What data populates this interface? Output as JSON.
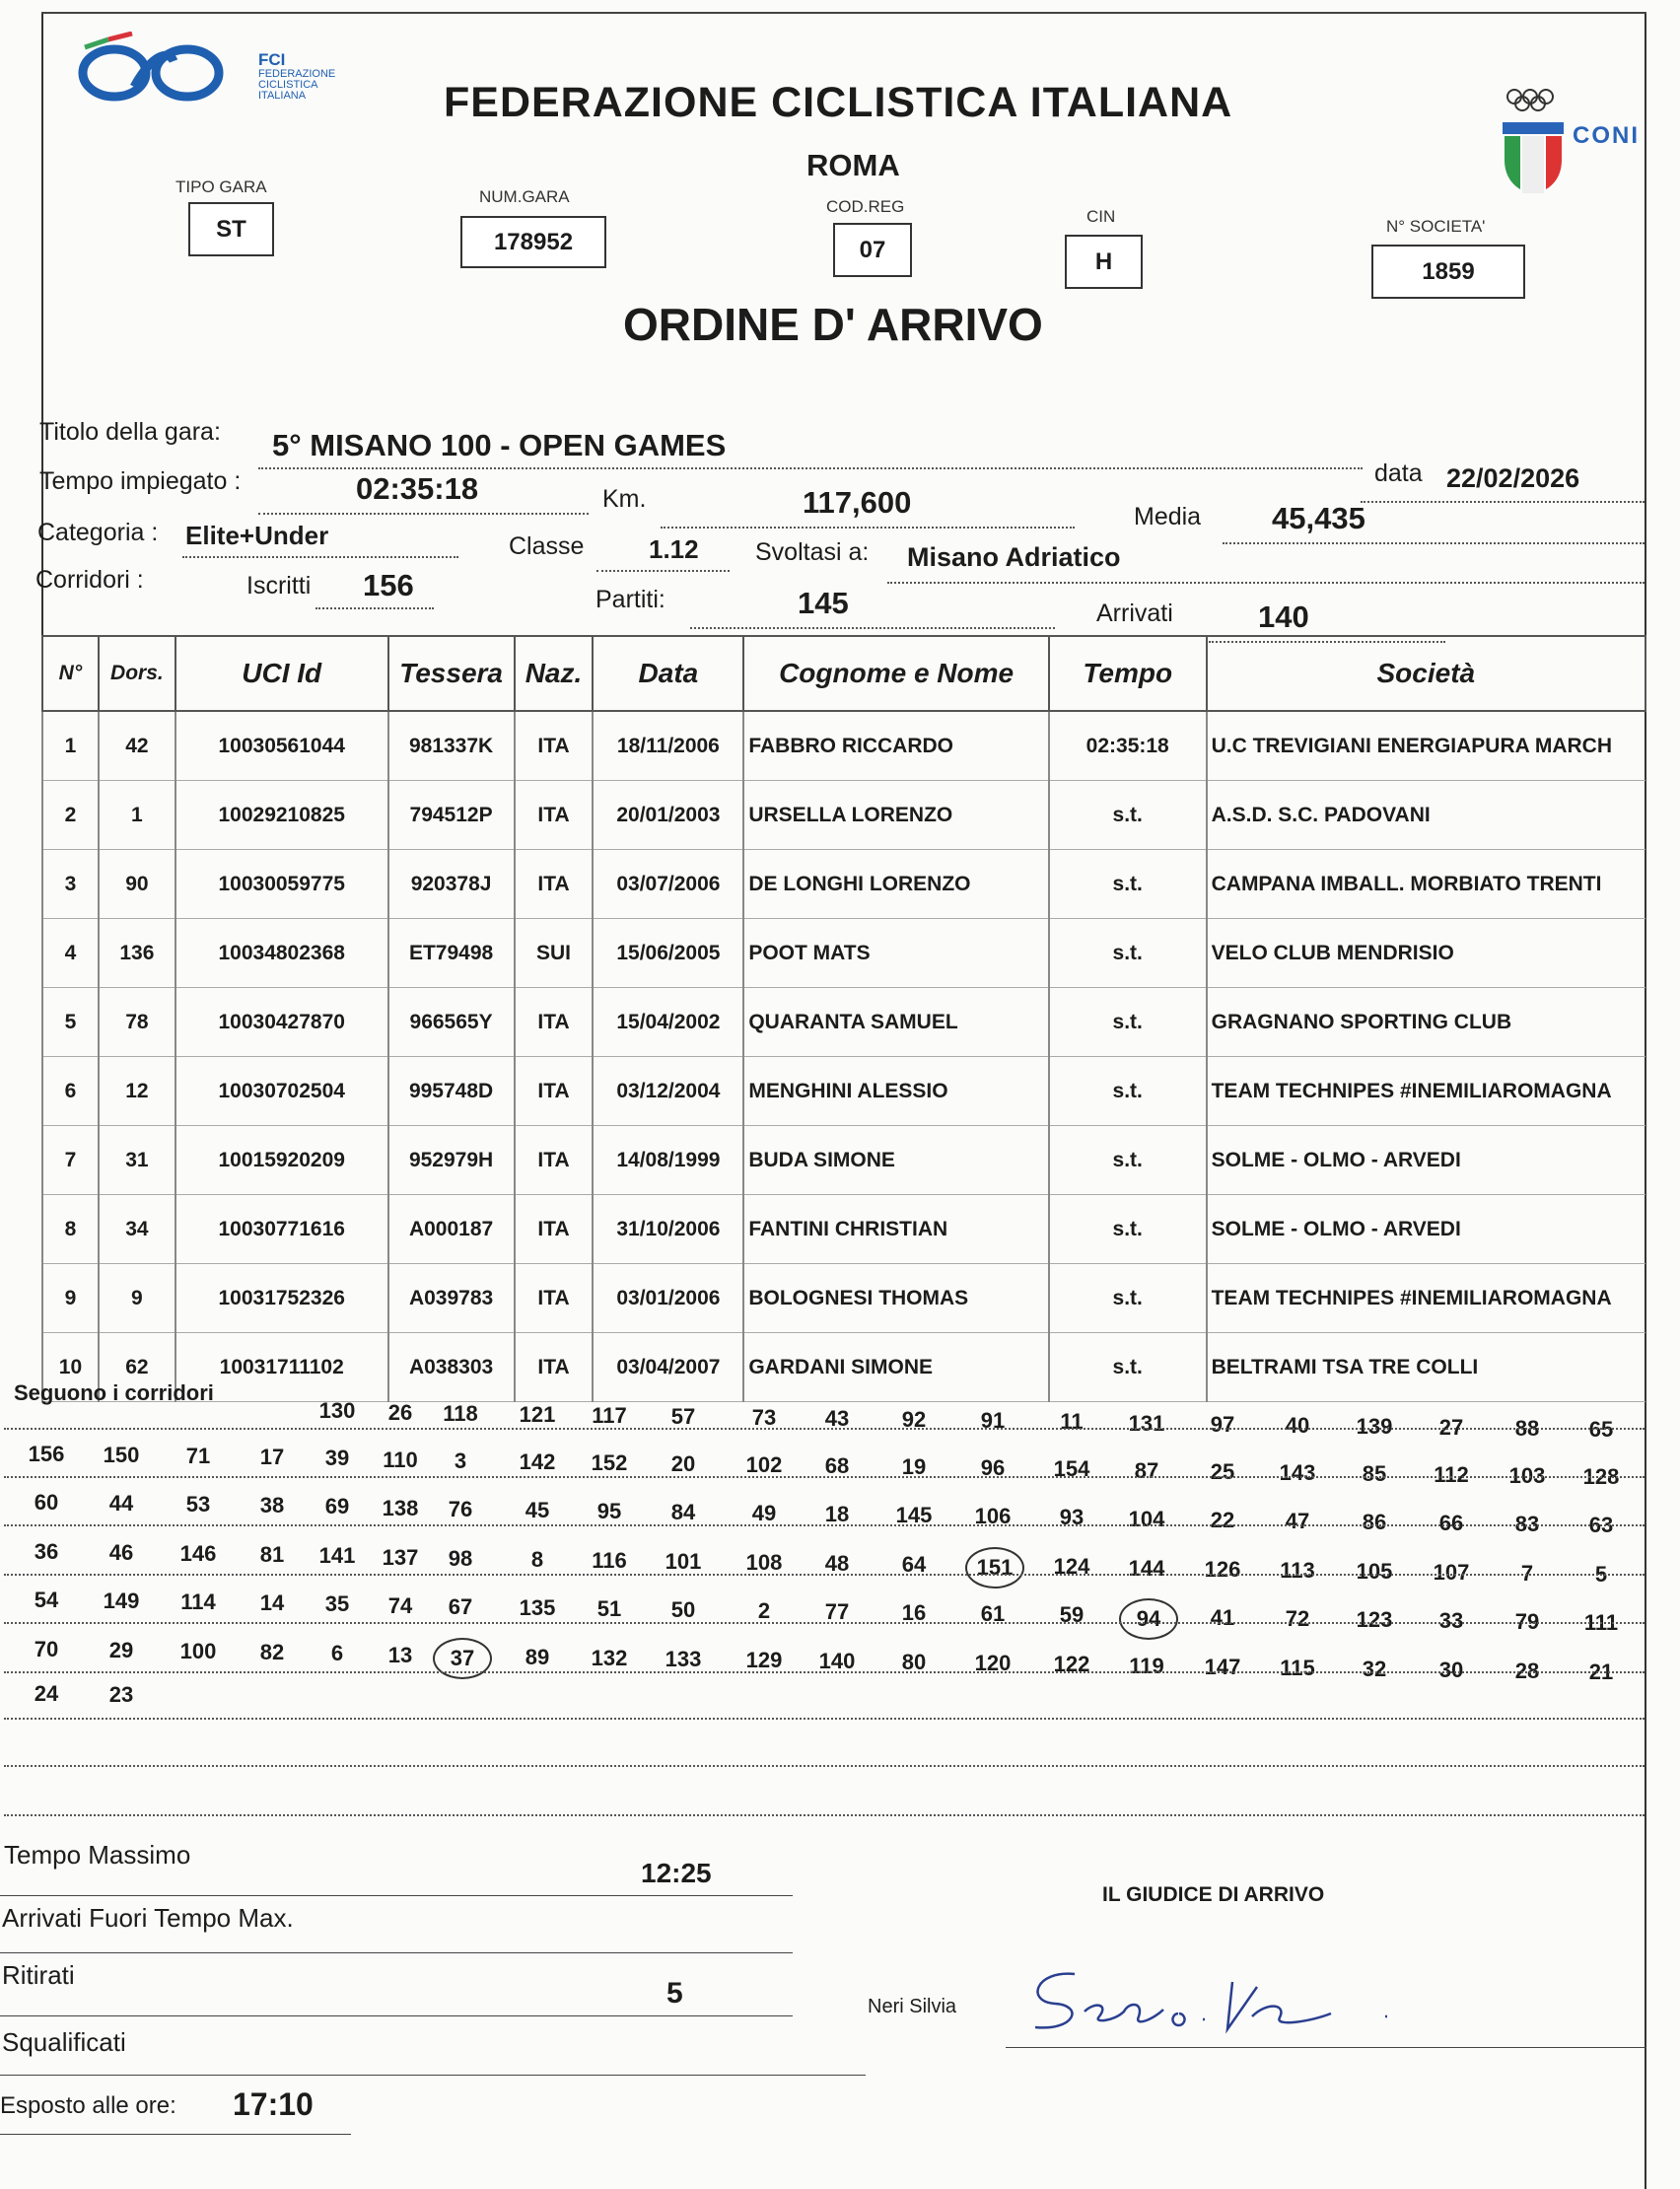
{
  "header": {
    "fci_logo_text": [
      "FCI",
      "FEDERAZIONE",
      "CICLISTICA",
      "ITALIANA"
    ],
    "title": "FEDERAZIONE CICLISTICA ITALIANA",
    "city": "ROMA",
    "coni_logo_text": "CONI",
    "tipo_gara": {
      "label": "TIPO GARA",
      "value": "ST"
    },
    "num_gara": {
      "label": "NUM.GARA",
      "value": "178952"
    },
    "cod_reg": {
      "label": "COD.REG",
      "value": "07"
    },
    "cin": {
      "label": "CIN",
      "value": "H"
    },
    "n_societa": {
      "label": "N° SOCIETA'",
      "value": "1859"
    },
    "doc_title": "ORDINE D' ARRIVO"
  },
  "race": {
    "titolo_label": "Titolo della gara:",
    "titolo": "5° MISANO 100 - OPEN GAMES",
    "tempo_label": "Tempo impiegato :",
    "tempo": "02:35:18",
    "km_label": "Km.",
    "km": "117,600",
    "data_label": "data",
    "data": "22/02/2026",
    "media_label": "Media",
    "media": "45,435",
    "categoria_label": "Categoria :",
    "categoria": "Elite+Under",
    "classe_label": "Classe",
    "classe": "1.12",
    "svoltasi_label": "Svoltasi a:",
    "svoltasi": "Misano Adriatico",
    "corridori_label": "Corridori :",
    "iscritti_label": "Iscritti",
    "iscritti": "156",
    "partiti_label": "Partiti:",
    "partiti": "145",
    "arrivati_label": "Arrivati",
    "arrivati": "140"
  },
  "table": {
    "headers": [
      "N°",
      "Dors.",
      "UCI Id",
      "Tessera",
      "Naz.",
      "Data",
      "Cognome e Nome",
      "Tempo",
      "Società"
    ],
    "rows": [
      [
        "1",
        "42",
        "10030561044",
        "981337K",
        "ITA",
        "18/11/2006",
        "FABBRO RICCARDO",
        "02:35:18",
        "U.C TREVIGIANI ENERGIAPURA MARCH"
      ],
      [
        "2",
        "1",
        "10029210825",
        "794512P",
        "ITA",
        "20/01/2003",
        "URSELLA LORENZO",
        "s.t.",
        "A.S.D. S.C. PADOVANI"
      ],
      [
        "3",
        "90",
        "10030059775",
        "920378J",
        "ITA",
        "03/07/2006",
        "DE LONGHI LORENZO",
        "s.t.",
        "CAMPANA IMBALL. MORBIATO TRENTI"
      ],
      [
        "4",
        "136",
        "10034802368",
        "ET79498",
        "SUI",
        "15/06/2005",
        "POOT MATS",
        "s.t.",
        "VELO CLUB MENDRISIO"
      ],
      [
        "5",
        "78",
        "10030427870",
        "966565Y",
        "ITA",
        "15/04/2002",
        "QUARANTA SAMUEL",
        "s.t.",
        "GRAGNANO SPORTING CLUB"
      ],
      [
        "6",
        "12",
        "10030702504",
        "995748D",
        "ITA",
        "03/12/2004",
        "MENGHINI ALESSIO",
        "s.t.",
        "TEAM TECHNIPES #INEMILIAROMAGNA"
      ],
      [
        "7",
        "31",
        "10015920209",
        "952979H",
        "ITA",
        "14/08/1999",
        "BUDA SIMONE",
        "s.t.",
        "SOLME - OLMO - ARVEDI"
      ],
      [
        "8",
        "34",
        "10030771616",
        "A000187",
        "ITA",
        "31/10/2006",
        "FANTINI CHRISTIAN",
        "s.t.",
        "SOLME - OLMO - ARVEDI"
      ],
      [
        "9",
        "9",
        "10031752326",
        "A039783",
        "ITA",
        "03/01/2006",
        "BOLOGNESI THOMAS",
        "s.t.",
        "TEAM TECHNIPES #INEMILIAROMAGNA"
      ],
      [
        "10",
        "62",
        "10031711102",
        "A038303",
        "ITA",
        "03/04/2007",
        "GARDANI SIMONE",
        "s.t.",
        "BELTRAMI TSA TRE COLLI"
      ]
    ]
  },
  "followers": {
    "label": "Seguono i corridori",
    "rows": [
      [
        "",
        "",
        "",
        "",
        "130",
        "26",
        "118",
        "121",
        "117",
        "57",
        "73",
        "43",
        "92",
        "91",
        "11",
        "131",
        "97",
        "40",
        "139",
        "27",
        "88",
        "65"
      ],
      [
        "156",
        "150",
        "71",
        "17",
        "39",
        "110",
        "3",
        "142",
        "152",
        "20",
        "102",
        "68",
        "19",
        "96",
        "154",
        "87",
        "25",
        "143",
        "85",
        "112",
        "103",
        "128"
      ],
      [
        "60",
        "44",
        "53",
        "38",
        "69",
        "138",
        "76",
        "45",
        "95",
        "84",
        "49",
        "18",
        "145",
        "106",
        "93",
        "104",
        "22",
        "47",
        "86",
        "66",
        "83",
        "63"
      ],
      [
        "36",
        "46",
        "146",
        "81",
        "141",
        "137",
        "98",
        "8",
        "116",
        "101",
        "108",
        "48",
        "64",
        "151",
        "124",
        "144",
        "126",
        "113",
        "105",
        "107",
        "7",
        "5"
      ],
      [
        "54",
        "149",
        "114",
        "14",
        "35",
        "74",
        "67",
        "135",
        "51",
        "50",
        "2",
        "77",
        "16",
        "61",
        "59",
        "94",
        "41",
        "72",
        "123",
        "33",
        "79",
        "111"
      ],
      [
        "70",
        "29",
        "100",
        "82",
        "6",
        "13",
        "37",
        "89",
        "132",
        "133",
        "129",
        "140",
        "80",
        "120",
        "122",
        "119",
        "147",
        "115",
        "32",
        "30",
        "28",
        "21"
      ],
      [
        "24",
        "23"
      ]
    ],
    "circled": [
      "37",
      "151",
      "94"
    ]
  },
  "footer": {
    "tempo_massimo_label": "Tempo Massimo",
    "tempo_massimo": "12:25",
    "fuori_tempo_label": "Arrivati Fuori Tempo Max.",
    "ritirati_label": "Ritirati",
    "ritirati": "5",
    "squalificati_label": "Squalificati",
    "esposto_label": "Esposto alle ore:",
    "esposto": "17:10",
    "giudice_label": "IL GIUDICE DI ARRIVO",
    "giudice_name": "Neri Silvia"
  },
  "colors": {
    "fci_blue": "#1f5fb0",
    "coni_blue": "#2a64b8",
    "ink": "#1c1c1c",
    "pen": "#2a3f8f"
  }
}
